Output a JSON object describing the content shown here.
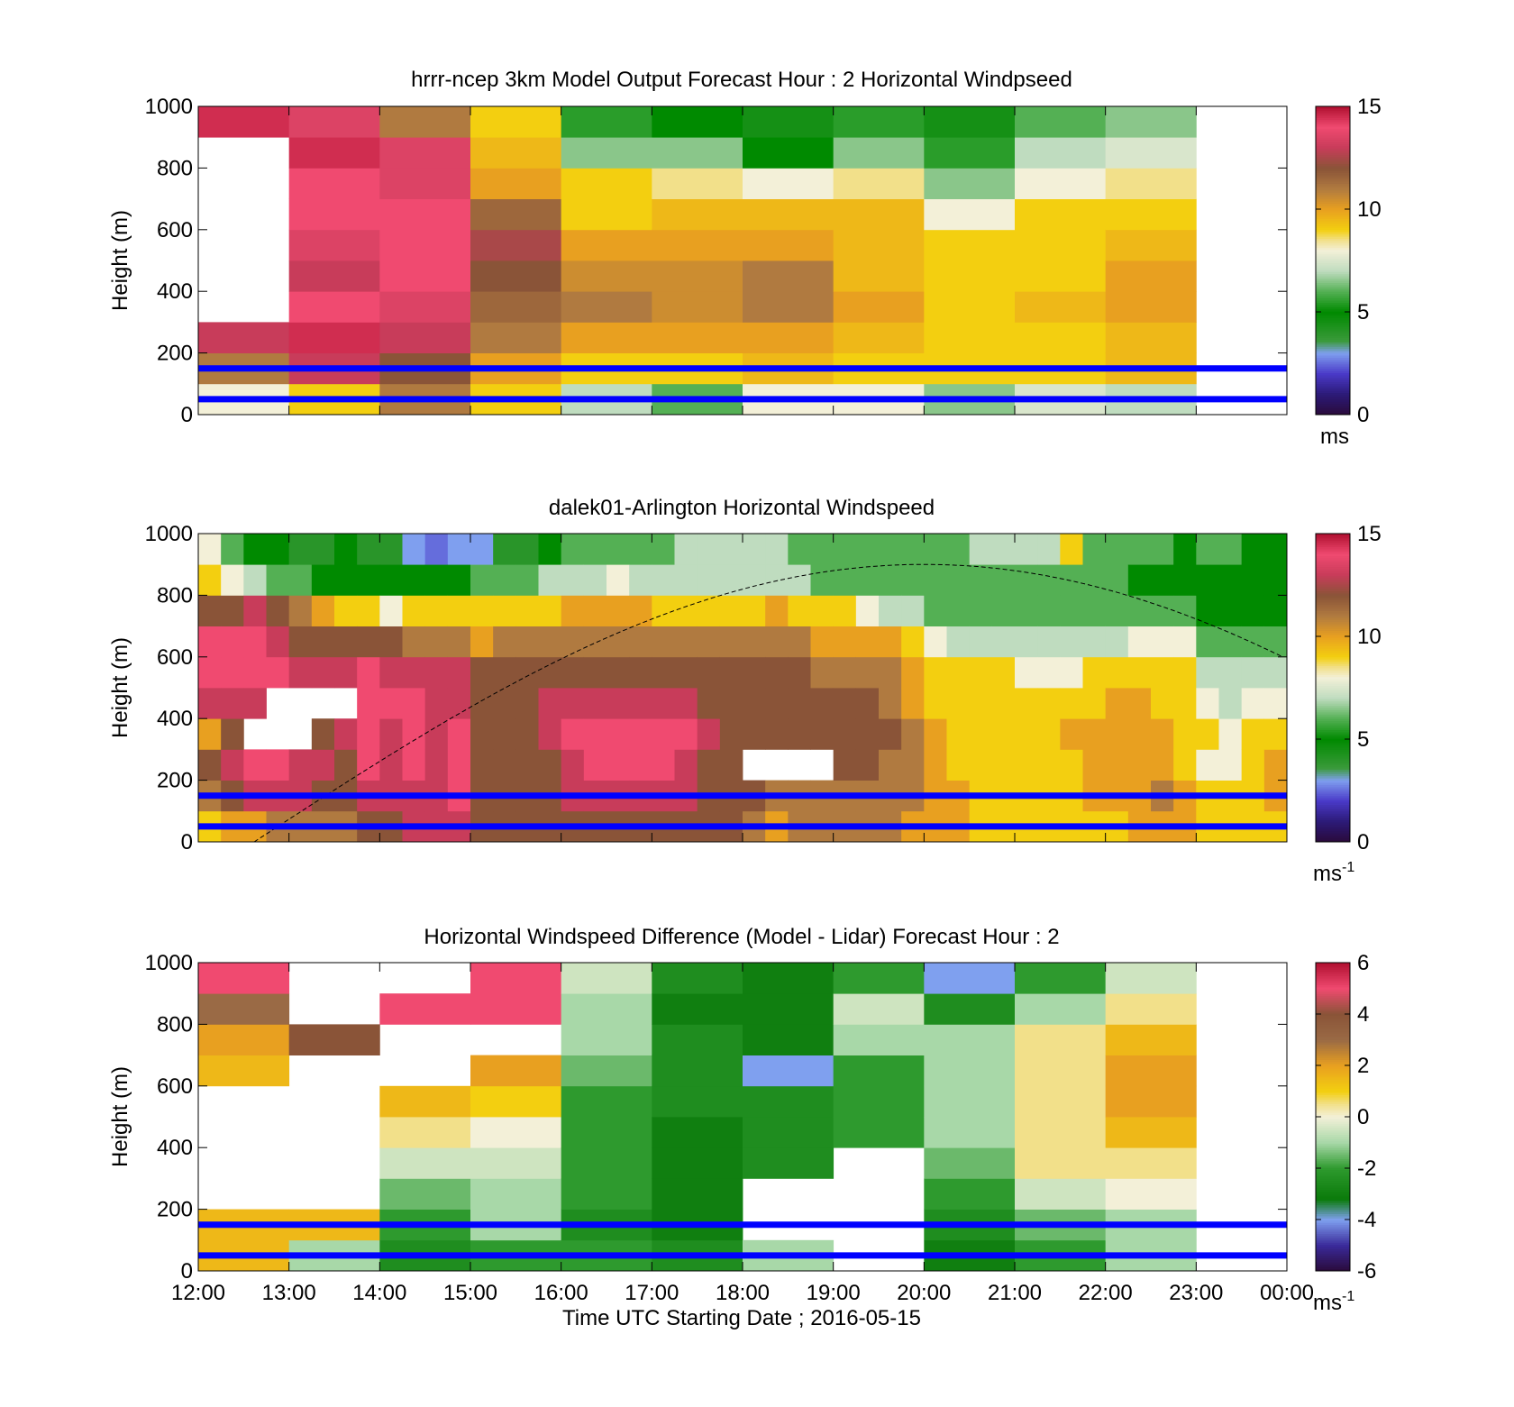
{
  "figure": {
    "xlabel": "Time UTC  Starting Date ; 2016-05-15"
  },
  "chart_data": [
    {
      "type": "heatmap",
      "title": "hrrr-ncep 3km Model Output   Forecast Hour : 2 Horizontal Windpseed",
      "ylabel": "Height (m)",
      "ylim": [
        0,
        1000
      ],
      "yticks": [
        "0",
        "200",
        "400",
        "600",
        "800",
        "1000"
      ],
      "xlim": [
        "12:00",
        "00:00"
      ],
      "colorbar": {
        "min": 0,
        "max": 15,
        "ticks": [
          "0",
          "5",
          "10",
          "15"
        ],
        "unit": "ms",
        "scheme": "windspeed"
      },
      "reference_lines_height_m": [
        150,
        50
      ],
      "reference_line_color": "#0000ff",
      "cell_hours": 1,
      "cell_height_m": 100,
      "columns": [
        {
          "time": "12:00",
          "values": [
            8,
            11,
            13,
            null,
            null,
            null,
            null,
            null,
            null,
            14.5
          ]
        },
        {
          "time": "13:00",
          "values": [
            9,
            13,
            14.5,
            14,
            13,
            13.5,
            14,
            14,
            14.5,
            13.5
          ]
        },
        {
          "time": "14:00",
          "values": [
            11,
            12,
            13,
            13.5,
            14,
            14,
            14,
            13.5,
            13.5,
            11
          ]
        },
        {
          "time": "15:00",
          "values": [
            9,
            10,
            11,
            11.5,
            12,
            12.5,
            11.5,
            10,
            9.5,
            9
          ]
        },
        {
          "time": "16:00",
          "values": [
            7,
            9,
            10,
            11,
            10.5,
            10,
            9,
            9,
            6.5,
            5.5
          ]
        },
        {
          "time": "17:00",
          "values": [
            6,
            9,
            10,
            10.5,
            10.5,
            10,
            9.5,
            8.5,
            6.5,
            5
          ]
        },
        {
          "time": "18:00",
          "values": [
            8,
            9.5,
            10,
            11,
            11,
            10,
            9.5,
            8,
            5,
            4.5
          ]
        },
        {
          "time": "19:00",
          "values": [
            8,
            9,
            9.5,
            10,
            9.5,
            9.5,
            9.5,
            8.5,
            6.5,
            5.5
          ]
        },
        {
          "time": "20:00",
          "values": [
            6.5,
            9,
            9,
            9,
            9,
            9,
            8,
            6.5,
            5.5,
            4.5
          ]
        },
        {
          "time": "21:00",
          "values": [
            7.5,
            9,
            9,
            9.5,
            9,
            9,
            9,
            8,
            7,
            6
          ]
        },
        {
          "time": "22:00",
          "values": [
            7,
            9.5,
            9.5,
            10,
            10,
            9.5,
            9,
            8.5,
            7.5,
            6.5
          ]
        }
      ]
    },
    {
      "type": "heatmap",
      "title": "dalek01-Arlington  Horizontal Windspeed",
      "ylabel": "Height (m)",
      "ylim": [
        0,
        1000
      ],
      "yticks": [
        "0",
        "200",
        "400",
        "600",
        "800",
        "1000"
      ],
      "xlim": [
        "12:00",
        "00:00"
      ],
      "colorbar": {
        "min": 0,
        "max": 15,
        "ticks": [
          "0",
          "5",
          "10",
          "15"
        ],
        "unit": "ms",
        "unit_sup": "-1",
        "scheme": "windspeed"
      },
      "reference_lines_height_m": [
        150,
        50
      ],
      "reference_line_color": "#0000ff",
      "cell_hours": 0.25,
      "cell_height_m": 100,
      "curve": {
        "style": "dashed",
        "color": "#000000",
        "start": [
          "12:37",
          0
        ],
        "peak": [
          "20:00",
          900
        ],
        "end": [
          "23:58",
          570
        ]
      },
      "columns": [
        {
          "time": "12:00",
          "values": [
            9,
            11,
            12,
            10,
            13,
            14,
            14,
            12,
            9,
            8
          ]
        },
        {
          "time": "12:15",
          "values": [
            10,
            12,
            13,
            12,
            13,
            14,
            14,
            12,
            8,
            6
          ]
        },
        {
          "time": "12:30",
          "values": [
            10,
            13,
            14,
            null,
            13,
            14,
            14,
            13,
            7,
            5
          ]
        },
        {
          "time": "12:45",
          "values": [
            11,
            13,
            14,
            null,
            null,
            14,
            13,
            12,
            6,
            5
          ]
        },
        {
          "time": "13:00",
          "values": [
            11,
            13,
            13,
            null,
            null,
            13,
            12,
            11,
            6,
            4
          ]
        },
        {
          "time": "13:15",
          "values": [
            11,
            12,
            13,
            12,
            null,
            13,
            12,
            10,
            5,
            4
          ]
        },
        {
          "time": "13:30",
          "values": [
            11,
            12,
            12,
            13,
            null,
            13,
            12,
            9,
            5,
            5
          ]
        },
        {
          "time": "13:45",
          "values": [
            12,
            13,
            14,
            14,
            14,
            14,
            12,
            9,
            5,
            4
          ]
        },
        {
          "time": "14:00",
          "values": [
            12,
            13,
            13,
            13,
            14,
            13,
            12,
            8,
            5,
            4
          ]
        },
        {
          "time": "14:15",
          "values": [
            13,
            13,
            14,
            14,
            14,
            13,
            11,
            9,
            5,
            3
          ]
        },
        {
          "time": "14:30",
          "values": [
            13,
            13,
            13,
            13,
            13,
            13,
            11,
            9,
            5,
            2.5
          ]
        },
        {
          "time": "14:45",
          "values": [
            13,
            14,
            14,
            14,
            13,
            13,
            11,
            9,
            5,
            3
          ]
        },
        {
          "time": "15:00",
          "values": [
            12,
            12,
            12,
            12,
            12,
            12,
            10,
            9,
            6,
            3
          ]
        },
        {
          "time": "15:15",
          "values": [
            12,
            12,
            12,
            12,
            12,
            12,
            11,
            9,
            6,
            4
          ]
        },
        {
          "time": "15:30",
          "values": [
            12,
            12,
            12,
            12,
            12,
            12,
            11,
            9,
            6,
            4
          ]
        },
        {
          "time": "15:45",
          "values": [
            12,
            12,
            12,
            13,
            13,
            12,
            11,
            9,
            7,
            5
          ]
        },
        {
          "time": "16:00",
          "values": [
            12,
            13,
            13,
            14,
            13,
            12,
            11,
            10,
            7,
            6
          ]
        },
        {
          "time": "16:15",
          "values": [
            12,
            13,
            14,
            14,
            13,
            12,
            11,
            10,
            7,
            6
          ]
        },
        {
          "time": "16:30",
          "values": [
            12,
            13,
            14,
            14,
            13,
            12,
            11,
            10,
            8,
            6
          ]
        },
        {
          "time": "16:45",
          "values": [
            12,
            13,
            14,
            14,
            13,
            12,
            11,
            10,
            7,
            6
          ]
        },
        {
          "time": "17:00",
          "values": [
            12,
            13,
            14,
            14,
            13,
            12,
            11,
            9,
            7,
            6
          ]
        },
        {
          "time": "17:15",
          "values": [
            12,
            13,
            13,
            14,
            13,
            12,
            11,
            9,
            7,
            7
          ]
        },
        {
          "time": "17:30",
          "values": [
            12,
            12,
            12,
            13,
            12,
            12,
            11,
            9,
            7,
            7
          ]
        },
        {
          "time": "17:45",
          "values": [
            12,
            12,
            12,
            12,
            12,
            12,
            11,
            9,
            7,
            7
          ]
        },
        {
          "time": "18:00",
          "values": [
            11,
            12,
            null,
            12,
            12,
            12,
            11,
            9,
            7,
            7
          ]
        },
        {
          "time": "18:15",
          "values": [
            10,
            11,
            null,
            12,
            12,
            12,
            11,
            10,
            7,
            7
          ]
        },
        {
          "time": "18:30",
          "values": [
            11,
            11,
            null,
            12,
            12,
            12,
            11,
            9,
            7,
            6
          ]
        },
        {
          "time": "18:45",
          "values": [
            11,
            11,
            null,
            12,
            12,
            11,
            10,
            9,
            6,
            6
          ]
        },
        {
          "time": "19:00",
          "values": [
            11,
            11,
            12,
            12,
            12,
            11,
            10,
            9,
            6,
            6
          ]
        },
        {
          "time": "19:15",
          "values": [
            11,
            11,
            12,
            12,
            12,
            11,
            10,
            8,
            6,
            6
          ]
        },
        {
          "time": "19:30",
          "values": [
            11,
            11,
            11,
            12,
            11,
            11,
            10,
            7,
            6,
            6
          ]
        },
        {
          "time": "19:45",
          "values": [
            10,
            11,
            11,
            11,
            10,
            10,
            9,
            7,
            6,
            6
          ]
        },
        {
          "time": "20:00",
          "values": [
            10,
            10,
            10,
            10,
            9,
            9,
            8,
            6,
            6,
            6
          ]
        },
        {
          "time": "20:15",
          "values": [
            10,
            10,
            9,
            9,
            9,
            9,
            7,
            6,
            6,
            6
          ]
        },
        {
          "time": "20:30",
          "values": [
            9,
            9,
            9,
            9,
            9,
            9,
            7,
            6,
            6,
            7
          ]
        },
        {
          "time": "20:45",
          "values": [
            9,
            9,
            9,
            9,
            9,
            9,
            7,
            6,
            6,
            7
          ]
        },
        {
          "time": "21:00",
          "values": [
            9,
            9,
            9,
            9,
            9,
            8,
            7,
            6,
            6,
            7
          ]
        },
        {
          "time": "21:15",
          "values": [
            9,
            9,
            9,
            9,
            9,
            8,
            7,
            6,
            6,
            7
          ]
        },
        {
          "time": "21:30",
          "values": [
            9,
            9,
            9,
            10,
            9,
            8,
            7,
            6,
            6,
            9
          ]
        },
        {
          "time": "21:45",
          "values": [
            9,
            10,
            10,
            10,
            9,
            9,
            7,
            6,
            6,
            6
          ]
        },
        {
          "time": "22:00",
          "values": [
            9,
            10,
            10,
            10,
            10,
            9,
            7,
            6,
            6,
            6
          ]
        },
        {
          "time": "22:15",
          "values": [
            10,
            10,
            10,
            10,
            10,
            9,
            8,
            6,
            5,
            6
          ]
        },
        {
          "time": "22:30",
          "values": [
            10,
            11,
            10,
            10,
            9,
            9,
            8,
            6,
            5,
            6
          ]
        },
        {
          "time": "22:45",
          "values": [
            10,
            10,
            9,
            9,
            9,
            9,
            8,
            6,
            5,
            5
          ]
        },
        {
          "time": "23:00",
          "values": [
            9,
            9,
            8,
            9,
            8,
            7,
            6,
            5,
            5,
            6
          ]
        },
        {
          "time": "23:15",
          "values": [
            9,
            9,
            8,
            8,
            7,
            7,
            6,
            5,
            5,
            6
          ]
        },
        {
          "time": "23:30",
          "values": [
            9,
            9,
            9,
            9,
            8,
            7,
            6,
            5,
            5,
            5
          ]
        },
        {
          "time": "23:45",
          "values": [
            9,
            10,
            10,
            9,
            8,
            7,
            6,
            5,
            5,
            5
          ]
        }
      ]
    },
    {
      "type": "heatmap",
      "title": "Horizontal Windspeed Difference (Model - Lidar) Forecast Hour : 2",
      "ylabel": "Height (m)",
      "ylim": [
        0,
        1000
      ],
      "yticks": [
        "0",
        "200",
        "400",
        "600",
        "800",
        "1000"
      ],
      "xlabel": "Time UTC  Starting Date ; 2016-05-15",
      "xticks": [
        "12:00",
        "13:00",
        "14:00",
        "15:00",
        "16:00",
        "17:00",
        "18:00",
        "19:00",
        "20:00",
        "21:00",
        "22:00",
        "23:00",
        "00:00"
      ],
      "xlim": [
        "12:00",
        "00:00"
      ],
      "colorbar": {
        "min": -6,
        "max": 6,
        "ticks": [
          "-6",
          "-4",
          "-2",
          "0",
          "2",
          "4",
          "6"
        ],
        "unit": "ms",
        "unit_sup": "-1",
        "scheme": "difference"
      },
      "reference_lines_height_m": [
        150,
        50
      ],
      "reference_line_color": "#0000ff",
      "cell_hours": 1,
      "cell_height_m": 100,
      "columns": [
        {
          "time": "12:00",
          "values": [
            1.5,
            1.5,
            null,
            null,
            null,
            null,
            1.5,
            2,
            3,
            5
          ]
        },
        {
          "time": "13:00",
          "values": [
            -1,
            1.5,
            null,
            null,
            null,
            null,
            null,
            4,
            null,
            null
          ]
        },
        {
          "time": "14:00",
          "values": [
            -2.5,
            -2,
            -1.5,
            -0.5,
            0.5,
            1.5,
            null,
            null,
            5,
            null
          ]
        },
        {
          "time": "15:00",
          "values": [
            -2,
            -1,
            -1,
            -0.5,
            0,
            1,
            2,
            null,
            5,
            5
          ]
        },
        {
          "time": "16:00",
          "values": [
            -2,
            -2.5,
            -2,
            -2,
            -2,
            -2,
            -1.5,
            -1,
            -1,
            -0.5
          ]
        },
        {
          "time": "17:00",
          "values": [
            -2.5,
            -3,
            -3,
            -3,
            -3,
            -2.5,
            -2.5,
            -2.5,
            -3,
            -2.5
          ]
        },
        {
          "time": "18:00",
          "values": [
            -1,
            null,
            null,
            -2.5,
            -2.5,
            -2.5,
            -4,
            -3,
            -3,
            -3
          ]
        },
        {
          "time": "19:00",
          "values": [
            null,
            null,
            null,
            null,
            -2,
            -2,
            -2,
            -1,
            -0.5,
            -2
          ]
        },
        {
          "time": "20:00",
          "values": [
            -3,
            -2.5,
            -2,
            -1.5,
            -1,
            -1,
            -1,
            -1,
            -2.5,
            -4
          ]
        },
        {
          "time": "21:00",
          "values": [
            -2,
            -1.5,
            -0.5,
            0.5,
            0.5,
            0.5,
            0.5,
            0.5,
            -1,
            -2
          ]
        },
        {
          "time": "22:00",
          "values": [
            -1,
            -1,
            0,
            0.5,
            1.5,
            2,
            2,
            1.5,
            0.5,
            -0.5
          ]
        }
      ]
    }
  ]
}
